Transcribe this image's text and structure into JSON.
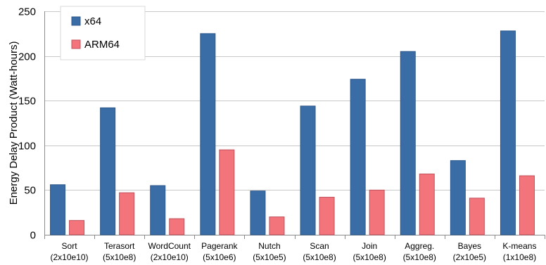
{
  "chart_data": {
    "type": "bar",
    "categories": [
      [
        "Sort",
        "(2x10e10)"
      ],
      [
        "Terasort",
        "(5x10e8)"
      ],
      [
        "WordCount",
        "(2x10e10)"
      ],
      [
        "Pagerank",
        "(5x10e6)"
      ],
      [
        "Nutch",
        "(5x10e5)"
      ],
      [
        "Scan",
        "(5x10e8)"
      ],
      [
        "Join",
        "(5x10e8)"
      ],
      [
        "Aggreg.",
        "(5x10e8)"
      ],
      [
        "Bayes",
        "(2x10e5)"
      ],
      [
        "K-means",
        "(1x10e8)"
      ]
    ],
    "series": [
      {
        "name": "x64",
        "color": "#3a6ca6",
        "values": [
          56,
          142,
          55,
          225,
          49,
          144,
          174,
          205,
          83,
          228
        ]
      },
      {
        "name": "ARM64",
        "color": "#f4747c",
        "values": [
          16,
          47,
          18,
          95,
          20,
          42,
          50,
          68,
          41,
          66
        ]
      }
    ],
    "ylabel": "Energy Delay Product (Watt-hours)",
    "ylim": [
      0,
      250
    ],
    "yticks": [
      0,
      50,
      100,
      150,
      200,
      250
    ],
    "grid": true,
    "legend_position": "top-left"
  }
}
